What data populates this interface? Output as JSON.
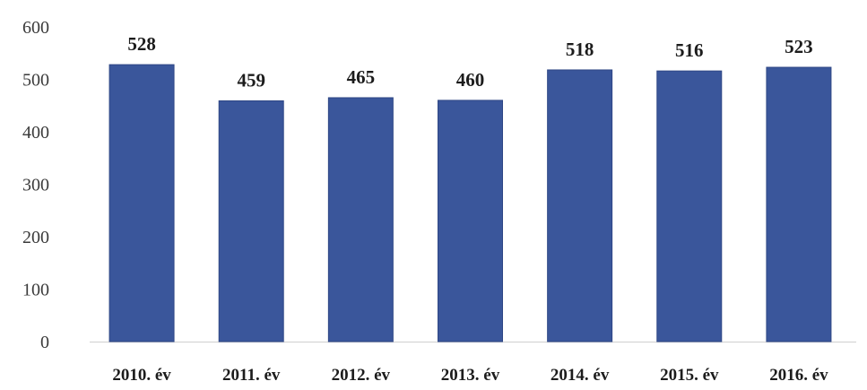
{
  "chart_data": {
    "type": "bar",
    "title": "",
    "xlabel": "",
    "ylabel": "",
    "categories": [
      "2010. év",
      "2011. év",
      "2012. év",
      "2013. év",
      "2014. év",
      "2015. év",
      "2016. év"
    ],
    "values": [
      528,
      459,
      465,
      460,
      518,
      516,
      523
    ],
    "data_labels": [
      "528",
      "459",
      "465",
      "460",
      "518",
      "516",
      "523"
    ],
    "y_ticks": [
      "0",
      "100",
      "200",
      "300",
      "400",
      "500",
      "600"
    ],
    "ylim": [
      0,
      600
    ],
    "grid": false,
    "legend": "none",
    "colors": {
      "bar": "#3a569b",
      "bar_edge": "#2f4785",
      "baseline": "#cfcfcf"
    }
  }
}
